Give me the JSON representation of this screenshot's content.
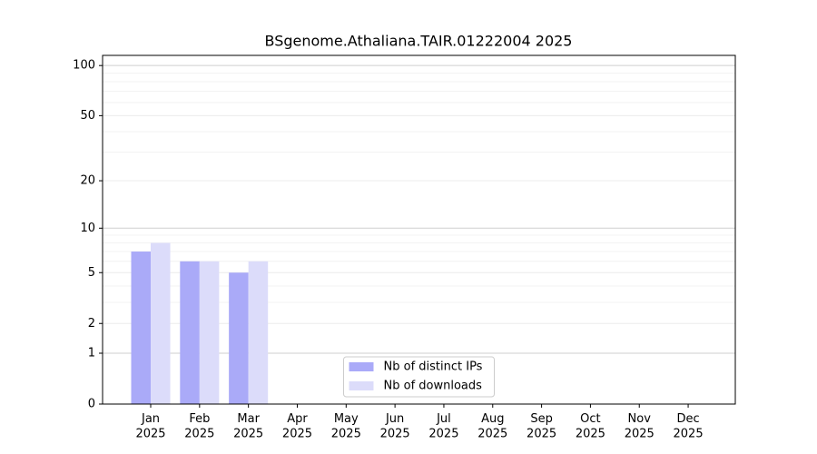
{
  "chart_data": {
    "type": "bar",
    "title": "BSgenome.Athaliana.TAIR.01222004 2025",
    "categories": [
      "Jan\n2025",
      "Feb\n2025",
      "Mar\n2025",
      "Apr\n2025",
      "May\n2025",
      "Jun\n2025",
      "Jul\n2025",
      "Aug\n2025",
      "Sep\n2025",
      "Oct\n2025",
      "Nov\n2025",
      "Dec\n2025"
    ],
    "series": [
      {
        "name": "Nb of distinct IPs",
        "color": "#aaaaf8",
        "values": [
          7,
          6,
          5,
          0,
          0,
          0,
          0,
          0,
          0,
          0,
          0,
          0
        ]
      },
      {
        "name": "Nb of downloads",
        "color": "#dcdcfa",
        "values": [
          8,
          6,
          6,
          0,
          0,
          0,
          0,
          0,
          0,
          0,
          0,
          0
        ]
      }
    ],
    "yscale": "log1p",
    "ylim": [
      0,
      115
    ],
    "yticks": [
      0,
      1,
      2,
      5,
      10,
      20,
      50,
      100
    ],
    "yminor": [
      3,
      4,
      6,
      7,
      8,
      9,
      30,
      40,
      60,
      70,
      80,
      90
    ],
    "grid": true,
    "legend": "lower center"
  }
}
